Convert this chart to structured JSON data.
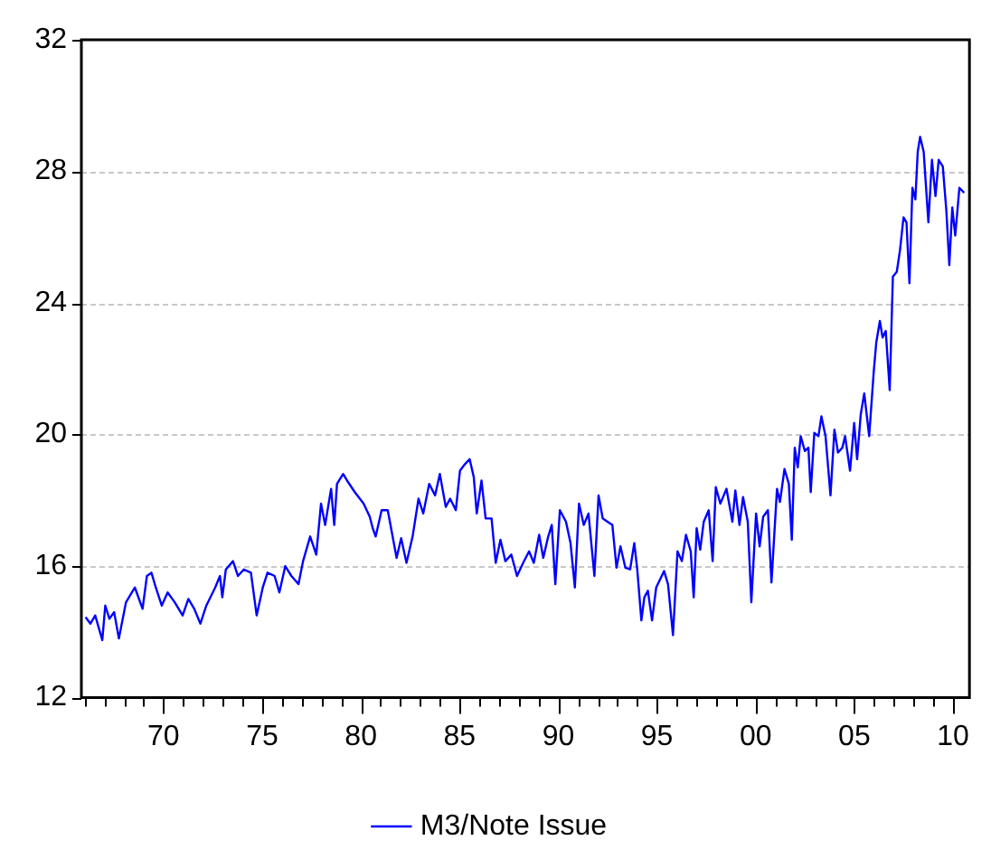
{
  "chart_data": {
    "type": "line",
    "xlim": [
      1965.84,
      2010.83
    ],
    "xticks": [
      {
        "value": 1966,
        "label": null
      },
      {
        "value": 1967,
        "label": null
      },
      {
        "value": 1968,
        "label": null
      },
      {
        "value": 1969,
        "label": null
      },
      {
        "value": 1970,
        "label": "70"
      },
      {
        "value": 1971,
        "label": null
      },
      {
        "value": 1972,
        "label": null
      },
      {
        "value": 1973,
        "label": null
      },
      {
        "value": 1974,
        "label": null
      },
      {
        "value": 1975,
        "label": "75"
      },
      {
        "value": 1976,
        "label": null
      },
      {
        "value": 1977,
        "label": null
      },
      {
        "value": 1978,
        "label": null
      },
      {
        "value": 1979,
        "label": null
      },
      {
        "value": 1980,
        "label": "80"
      },
      {
        "value": 1981,
        "label": null
      },
      {
        "value": 1982,
        "label": null
      },
      {
        "value": 1983,
        "label": null
      },
      {
        "value": 1984,
        "label": null
      },
      {
        "value": 1985,
        "label": "85"
      },
      {
        "value": 1986,
        "label": null
      },
      {
        "value": 1987,
        "label": null
      },
      {
        "value": 1988,
        "label": null
      },
      {
        "value": 1989,
        "label": null
      },
      {
        "value": 1990,
        "label": "90"
      },
      {
        "value": 1991,
        "label": null
      },
      {
        "value": 1992,
        "label": null
      },
      {
        "value": 1993,
        "label": null
      },
      {
        "value": 1994,
        "label": null
      },
      {
        "value": 1995,
        "label": "95"
      },
      {
        "value": 1996,
        "label": null
      },
      {
        "value": 1997,
        "label": null
      },
      {
        "value": 1998,
        "label": null
      },
      {
        "value": 1999,
        "label": null
      },
      {
        "value": 2000,
        "label": "00"
      },
      {
        "value": 2001,
        "label": null
      },
      {
        "value": 2002,
        "label": null
      },
      {
        "value": 2003,
        "label": null
      },
      {
        "value": 2004,
        "label": null
      },
      {
        "value": 2005,
        "label": "05"
      },
      {
        "value": 2006,
        "label": null
      },
      {
        "value": 2007,
        "label": null
      },
      {
        "value": 2008,
        "label": null
      },
      {
        "value": 2009,
        "label": null
      },
      {
        "value": 2010,
        "label": "10"
      }
    ],
    "ylim": [
      12,
      32
    ],
    "yticks": [
      12,
      16,
      20,
      24,
      28,
      32
    ],
    "grid": "y",
    "legend": "bottom",
    "marker": "none",
    "line_style": "solid",
    "x": [
      1966.05,
      1966.3,
      1966.54,
      1966.9,
      1967.05,
      1967.26,
      1967.5,
      1967.74,
      1968.1,
      1968.55,
      1968.94,
      1969.16,
      1969.39,
      1969.61,
      1969.91,
      1970.21,
      1970.57,
      1970.97,
      1971.26,
      1971.56,
      1971.87,
      1972.17,
      1972.62,
      1972.86,
      1972.98,
      1973.16,
      1973.52,
      1973.77,
      1974.07,
      1974.43,
      1974.72,
      1975.03,
      1975.27,
      1975.63,
      1975.87,
      1976.17,
      1976.48,
      1976.84,
      1977.07,
      1977.43,
      1977.74,
      1977.98,
      1978.19,
      1978.49,
      1978.65,
      1978.79,
      1979.1,
      1979.3,
      1979.69,
      1980.14,
      1980.45,
      1980.6,
      1980.75,
      1981.05,
      1981.36,
      1981.81,
      1982.04,
      1982.31,
      1982.62,
      1982.92,
      1983.16,
      1983.46,
      1983.76,
      1984.0,
      1984.3,
      1984.52,
      1984.81,
      1985.02,
      1985.27,
      1985.51,
      1985.72,
      1985.87,
      1986.11,
      1986.32,
      1986.62,
      1986.83,
      1987.07,
      1987.32,
      1987.62,
      1987.91,
      1988.22,
      1988.52,
      1988.76,
      1989.03,
      1989.24,
      1989.49,
      1989.67,
      1989.85,
      1990.08,
      1990.39,
      1990.62,
      1990.84,
      1991.05,
      1991.29,
      1991.53,
      1991.83,
      1992.04,
      1992.25,
      1992.49,
      1992.74,
      1992.95,
      1993.15,
      1993.4,
      1993.64,
      1993.85,
      1994.0,
      1994.21,
      1994.36,
      1994.54,
      1994.75,
      1994.96,
      1995.36,
      1995.56,
      1995.81,
      1996.04,
      1996.26,
      1996.47,
      1996.71,
      1996.86,
      1997.01,
      1997.19,
      1997.37,
      1997.62,
      1997.82,
      1997.98,
      1998.21,
      1998.52,
      1998.82,
      1998.97,
      1999.18,
      1999.36,
      1999.6,
      1999.78,
      2000.02,
      2000.2,
      2000.38,
      2000.62,
      2000.8,
      2001.08,
      2001.23,
      2001.46,
      2001.68,
      2001.83,
      2001.98,
      2002.13,
      2002.28,
      2002.49,
      2002.67,
      2002.79,
      2002.97,
      2003.18,
      2003.33,
      2003.54,
      2003.79,
      2003.99,
      2004.17,
      2004.39,
      2004.53,
      2004.78,
      2004.99,
      2005.14,
      2005.32,
      2005.5,
      2005.75,
      2005.98,
      2006.11,
      2006.29,
      2006.43,
      2006.59,
      2006.79,
      2006.95,
      2007.15,
      2007.31,
      2007.49,
      2007.64,
      2007.79,
      2007.94,
      2008.09,
      2008.21,
      2008.33,
      2008.51,
      2008.75,
      2008.93,
      2009.11,
      2009.27,
      2009.48,
      2009.66,
      2009.81,
      2009.96,
      2010.11,
      2010.32,
      2010.56
    ],
    "series": [
      {
        "name": "M3/Note Issue",
        "color": "#0000ff",
        "values": [
          14.45,
          14.25,
          14.5,
          13.75,
          14.8,
          14.4,
          14.6,
          13.8,
          14.9,
          15.35,
          14.7,
          15.7,
          15.8,
          15.35,
          14.8,
          15.2,
          14.9,
          14.5,
          15.0,
          14.7,
          14.25,
          14.8,
          15.35,
          15.7,
          15.05,
          15.9,
          16.15,
          15.7,
          15.9,
          15.8,
          14.5,
          15.35,
          15.8,
          15.7,
          15.2,
          16.0,
          15.7,
          15.45,
          16.15,
          16.9,
          16.35,
          17.9,
          17.25,
          18.35,
          17.25,
          18.5,
          18.8,
          18.6,
          18.25,
          17.9,
          17.5,
          17.15,
          16.9,
          17.7,
          17.7,
          16.25,
          16.85,
          16.1,
          16.9,
          18.05,
          17.6,
          18.5,
          18.15,
          18.8,
          17.8,
          18.05,
          17.7,
          18.9,
          19.1,
          19.25,
          18.7,
          17.6,
          18.6,
          17.45,
          17.45,
          16.1,
          16.8,
          16.15,
          16.35,
          15.7,
          16.1,
          16.45,
          16.1,
          16.95,
          16.25,
          16.9,
          17.25,
          15.45,
          17.7,
          17.35,
          16.7,
          15.35,
          17.9,
          17.25,
          17.6,
          15.7,
          18.15,
          17.45,
          17.35,
          17.25,
          15.95,
          16.6,
          15.95,
          15.9,
          16.7,
          15.9,
          14.35,
          15.05,
          15.25,
          14.35,
          15.35,
          15.85,
          15.45,
          13.9,
          16.45,
          16.15,
          16.95,
          16.45,
          15.05,
          17.15,
          16.5,
          17.35,
          17.7,
          16.15,
          18.4,
          17.9,
          18.35,
          17.35,
          18.3,
          17.25,
          18.1,
          17.35,
          14.9,
          17.6,
          16.6,
          17.5,
          17.7,
          15.5,
          18.35,
          17.95,
          18.95,
          18.5,
          16.8,
          19.6,
          19.0,
          19.95,
          19.5,
          19.6,
          18.25,
          20.05,
          19.95,
          20.55,
          19.95,
          18.15,
          20.15,
          19.45,
          19.6,
          19.95,
          18.9,
          20.35,
          19.25,
          20.6,
          21.25,
          19.95,
          21.9,
          22.8,
          23.45,
          22.95,
          23.15,
          21.35,
          24.8,
          24.95,
          25.6,
          26.6,
          26.45,
          24.6,
          27.5,
          27.15,
          28.6,
          29.05,
          28.6,
          26.45,
          28.35,
          27.25,
          28.35,
          28.15,
          26.8,
          25.15,
          26.9,
          26.05,
          27.5,
          27.35
        ]
      }
    ]
  }
}
